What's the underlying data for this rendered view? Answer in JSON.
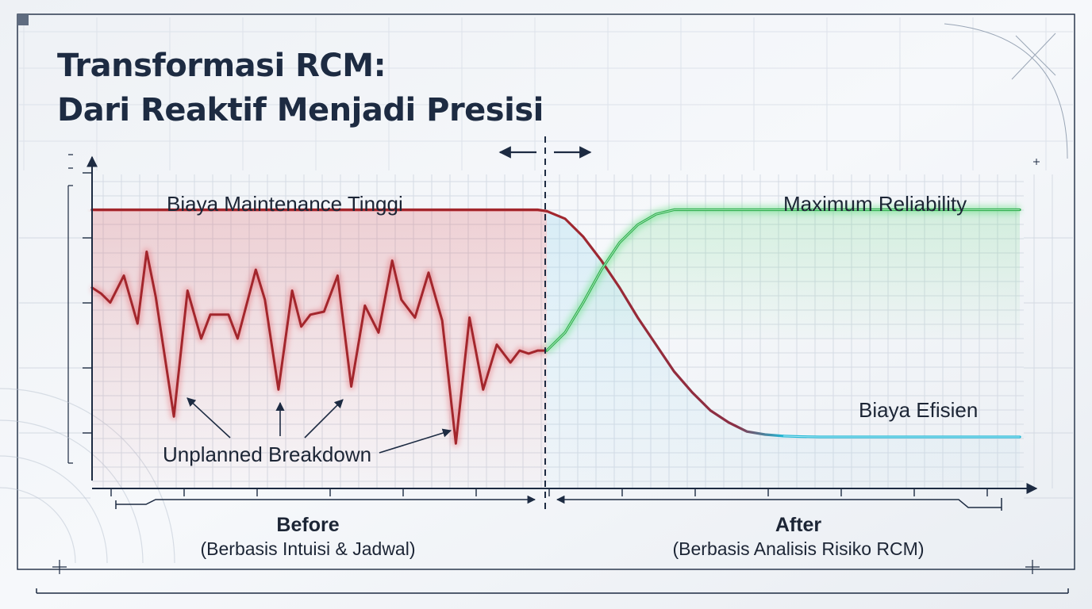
{
  "title_line1": "Transformasi RCM:",
  "title_line2": "Dari Reaktif Menjadi Presisi",
  "colors": {
    "background": "#eef1f5",
    "grid": "#cfd6e0",
    "axis": "#1d2b42",
    "title": "#1d2b42",
    "cost_line": "#a3262c",
    "reliability_line": "#2fae4e",
    "efficient_cost_line": "#22b8d6"
  },
  "chart_data": {
    "type": "line",
    "title": "Transformasi RCM: Dari Reaktif Menjadi Presisi",
    "xlabel": "",
    "ylabel": "",
    "grid": true,
    "legend": "none",
    "phases": [
      {
        "name": "Before",
        "label": "Before",
        "sublabel": "(Berbasis Intuisi & Jadwal)",
        "x_range": [
          0,
          50
        ]
      },
      {
        "name": "After",
        "label": "After",
        "sublabel": "(Berbasis Analisis Risiko RCM)",
        "x_range": [
          50,
          102
        ]
      }
    ],
    "x_range": [
      0,
      102
    ],
    "y_range": [
      0,
      100
    ],
    "series": [
      {
        "name": "",
        "role": "high maintenance cost then efficient cost",
        "color": "#a3262c",
        "color_after": "#22b8d6",
        "x": [
          0,
          49,
          50,
          52,
          54,
          56,
          58,
          60,
          62,
          64,
          66,
          68,
          70,
          72,
          74,
          76,
          78,
          80,
          82,
          84,
          102
        ],
        "y": [
          93,
          93,
          92.5,
          90,
          84,
          76,
          67,
          57,
          48,
          39,
          32,
          26,
          22,
          19,
          18,
          17.5,
          17.3,
          17.2,
          17.2,
          17.2,
          17.2
        ]
      },
      {
        "name": "",
        "role": "unplanned breakdown cost fluctuation",
        "color": "#a3262c",
        "x": [
          0,
          1,
          2,
          3.5,
          5,
          6,
          7,
          9,
          10.5,
          12,
          13,
          15,
          16,
          18,
          19,
          20.5,
          22,
          23,
          24,
          25.5,
          27,
          28.5,
          30,
          31.5,
          33,
          34,
          35.5,
          37,
          38.5,
          40,
          41.5,
          43,
          44.5,
          46,
          47,
          48,
          49,
          50
        ],
        "y": [
          67,
          65,
          62,
          71,
          55,
          79,
          64,
          24,
          66,
          50,
          58,
          58,
          50,
          73,
          63,
          33,
          66,
          54,
          58,
          59,
          71,
          34,
          61,
          52,
          76,
          63,
          57,
          72,
          56,
          15,
          57,
          33,
          48,
          42,
          46,
          45,
          46,
          46
        ]
      },
      {
        "name": "",
        "role": "reliability rising to maximum",
        "color": "#2fae4e",
        "x": [
          50,
          52,
          54,
          56,
          58,
          60,
          62,
          64,
          66,
          68,
          70,
          102
        ],
        "y": [
          46,
          52,
          62,
          73,
          82,
          88,
          91.5,
          93,
          93,
          93,
          93,
          93
        ]
      }
    ],
    "annotations": [
      {
        "text": "Biaya Maintenance Tinggi",
        "x": 20,
        "y": 100
      },
      {
        "text": "Maximum Reliability",
        "x": 90,
        "y": 100
      },
      {
        "text": "Biaya Efisien",
        "x": 90,
        "y": 26
      },
      {
        "text": "Unplanned Breakdown",
        "x": 20,
        "y": 12
      }
    ]
  }
}
